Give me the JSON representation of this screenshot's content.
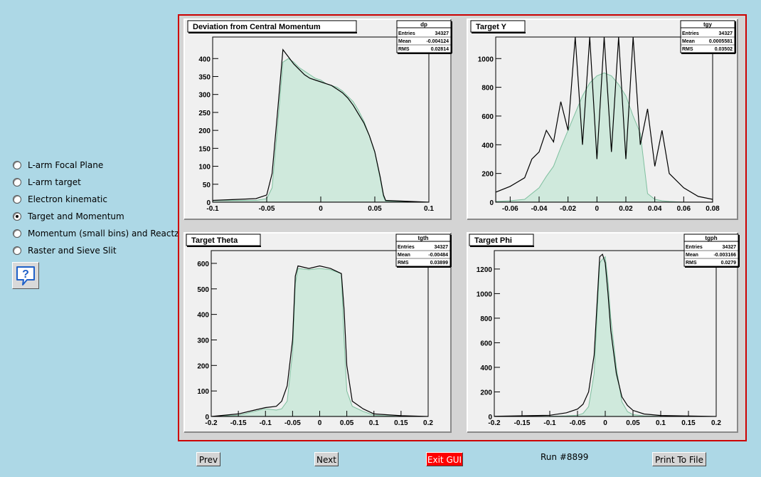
{
  "menu": {
    "items": [
      {
        "label": "L-arm Focal Plane",
        "selected": false
      },
      {
        "label": "L-arm target",
        "selected": false
      },
      {
        "label": "Electron kinematic",
        "selected": false
      },
      {
        "label": "Target and Momentum",
        "selected": true
      },
      {
        "label": "Momentum (small bins) and Reactz",
        "selected": false
      },
      {
        "label": "Raster and Sieve Slit",
        "selected": false
      }
    ],
    "help_icon": "question-balloon-icon"
  },
  "buttons": {
    "prev": "Prev",
    "next": "Next",
    "exit": "Exit GUI",
    "print": "Print To File"
  },
  "run_label": "Run #8899",
  "colors": {
    "canvas_border": "#cc0000",
    "fill": "#cfe9dc",
    "fill_line": "#7fbf9f",
    "line": "#000000",
    "exit_button": "#ff0000"
  },
  "chart_data": [
    {
      "type": "histogram",
      "title": "Deviation from Central Momentum",
      "stats": {
        "name": "dp",
        "rows": [
          [
            "Entries",
            "34327"
          ],
          [
            "Mean",
            "-0.004124"
          ],
          [
            "RMS",
            "0.02814"
          ]
        ]
      },
      "xlim": [
        -0.1,
        0.1
      ],
      "ylim": [
        0,
        460
      ],
      "xticks": [
        -0.1,
        -0.05,
        0,
        0.05,
        0.1
      ],
      "xticklabels": [
        "-0.1",
        "-0.05",
        "0",
        "0.05",
        "0.1"
      ],
      "yticks": [
        0,
        50,
        100,
        150,
        200,
        250,
        300,
        350,
        400
      ],
      "yticklabels": [
        "0",
        "50",
        "100",
        "150",
        "200",
        "250",
        "300",
        "350",
        "400"
      ],
      "x": [
        -0.1,
        -0.06,
        -0.05,
        -0.045,
        -0.04,
        -0.035,
        -0.03,
        -0.025,
        -0.02,
        -0.015,
        -0.01,
        -0.005,
        0,
        0.005,
        0.01,
        0.015,
        0.02,
        0.025,
        0.03,
        0.035,
        0.04,
        0.045,
        0.05,
        0.055,
        0.058,
        0.06,
        0.1
      ],
      "series": [
        {
          "values": [
            5,
            10,
            20,
            80,
            250,
            425,
            405,
            385,
            370,
            355,
            345,
            340,
            335,
            330,
            325,
            315,
            305,
            290,
            270,
            245,
            220,
            185,
            140,
            70,
            20,
            5,
            0
          ]
        },
        {
          "values": [
            5,
            5,
            10,
            40,
            210,
            390,
            400,
            390,
            375,
            365,
            355,
            345,
            340,
            330,
            325,
            320,
            310,
            295,
            280,
            255,
            225,
            185,
            140,
            65,
            15,
            3,
            0
          ]
        }
      ]
    },
    {
      "type": "histogram",
      "title": "Target Y",
      "stats": {
        "name": "tgy",
        "rows": [
          [
            "Entries",
            "34327"
          ],
          [
            "Mean",
            "0.0005581"
          ],
          [
            "RMS",
            "0.03502"
          ]
        ]
      },
      "xlim": [
        -0.07,
        0.08
      ],
      "ylim": [
        0,
        1150
      ],
      "xticks": [
        -0.06,
        -0.04,
        -0.02,
        0,
        0.02,
        0.04,
        0.06,
        0.08
      ],
      "xticklabels": [
        "-0.06",
        "-0.04",
        "-0.02",
        "0",
        "0.02",
        "0.04",
        "0.06",
        "0.08"
      ],
      "yticks": [
        0,
        200,
        400,
        600,
        800,
        1000
      ],
      "yticklabels": [
        "0",
        "200",
        "400",
        "600",
        "800",
        "1000"
      ],
      "x": [
        -0.07,
        -0.06,
        -0.05,
        -0.045,
        -0.04,
        -0.035,
        -0.03,
        -0.025,
        -0.02,
        -0.015,
        -0.01,
        -0.005,
        0,
        0.005,
        0.01,
        0.015,
        0.02,
        0.025,
        0.03,
        0.035,
        0.04,
        0.045,
        0.05,
        0.06,
        0.07,
        0.08
      ],
      "series": [
        {
          "values": [
            70,
            110,
            170,
            300,
            350,
            500,
            420,
            700,
            500,
            1150,
            400,
            1150,
            300,
            1150,
            350,
            1150,
            300,
            1150,
            400,
            650,
            250,
            500,
            200,
            100,
            40,
            20
          ]
        },
        {
          "values": [
            5,
            10,
            20,
            60,
            100,
            180,
            250,
            380,
            500,
            620,
            740,
            830,
            880,
            900,
            880,
            820,
            740,
            600,
            480,
            60,
            20,
            10,
            5,
            0,
            0,
            0
          ]
        }
      ]
    },
    {
      "type": "histogram",
      "title": "Target Theta",
      "stats": {
        "name": "tgth",
        "rows": [
          [
            "Entries",
            "34327"
          ],
          [
            "Mean",
            "-0.00484"
          ],
          [
            "RMS",
            "0.03899"
          ]
        ]
      },
      "xlim": [
        -0.2,
        0.2
      ],
      "ylim": [
        0,
        650
      ],
      "xticks": [
        -0.2,
        -0.15,
        -0.1,
        -0.05,
        0,
        0.05,
        0.1,
        0.15,
        0.2
      ],
      "xticklabels": [
        "-0.2",
        "-0.15",
        "-0.1",
        "-0.05",
        "0",
        "0.05",
        "0.1",
        "0.15",
        "0.2"
      ],
      "yticks": [
        0,
        100,
        200,
        300,
        400,
        500,
        600
      ],
      "yticklabels": [
        "0",
        "100",
        "200",
        "300",
        "400",
        "500",
        "600"
      ],
      "x": [
        -0.2,
        -0.15,
        -0.12,
        -0.1,
        -0.08,
        -0.07,
        -0.06,
        -0.05,
        -0.045,
        -0.04,
        -0.02,
        0,
        0.02,
        0.04,
        0.045,
        0.05,
        0.06,
        0.08,
        0.1,
        0.15,
        0.2
      ],
      "series": [
        {
          "values": [
            0,
            10,
            25,
            35,
            40,
            60,
            120,
            300,
            550,
            590,
            580,
            590,
            580,
            560,
            420,
            200,
            60,
            30,
            10,
            3,
            0
          ]
        },
        {
          "values": [
            0,
            5,
            20,
            30,
            25,
            30,
            60,
            250,
            520,
            580,
            575,
            580,
            575,
            560,
            300,
            100,
            40,
            20,
            5,
            0,
            0
          ]
        }
      ]
    },
    {
      "type": "histogram",
      "title": "Target Phi",
      "stats": {
        "name": "tgph",
        "rows": [
          [
            "Entries",
            "34327"
          ],
          [
            "Mean",
            "-0.003166"
          ],
          [
            "RMS",
            "0.0279"
          ]
        ]
      },
      "xlim": [
        -0.2,
        0.2
      ],
      "ylim": [
        0,
        1350
      ],
      "xticks": [
        -0.2,
        -0.15,
        -0.1,
        -0.05,
        0,
        0.05,
        0.1,
        0.15,
        0.2
      ],
      "xticklabels": [
        "-0.2",
        "-0.15",
        "-0.1",
        "-0.05",
        "0",
        "0.05",
        "0.1",
        "0.15",
        "0.2"
      ],
      "yticks": [
        0,
        200,
        400,
        600,
        800,
        1000,
        1200
      ],
      "yticklabels": [
        "0",
        "200",
        "400",
        "600",
        "800",
        "1000",
        "1200"
      ],
      "x": [
        -0.2,
        -0.1,
        -0.07,
        -0.05,
        -0.04,
        -0.03,
        -0.02,
        -0.015,
        -0.01,
        -0.005,
        0,
        0.005,
        0.01,
        0.02,
        0.03,
        0.04,
        0.05,
        0.07,
        0.1,
        0.2
      ],
      "series": [
        {
          "values": [
            2,
            10,
            30,
            60,
            100,
            200,
            500,
            900,
            1300,
            1320,
            1250,
            1000,
            700,
            350,
            160,
            90,
            50,
            20,
            8,
            0
          ]
        },
        {
          "values": [
            0,
            2,
            5,
            10,
            25,
            80,
            350,
            800,
            1250,
            1280,
            1300,
            1100,
            800,
            400,
            120,
            40,
            15,
            5,
            2,
            0
          ]
        }
      ]
    }
  ]
}
